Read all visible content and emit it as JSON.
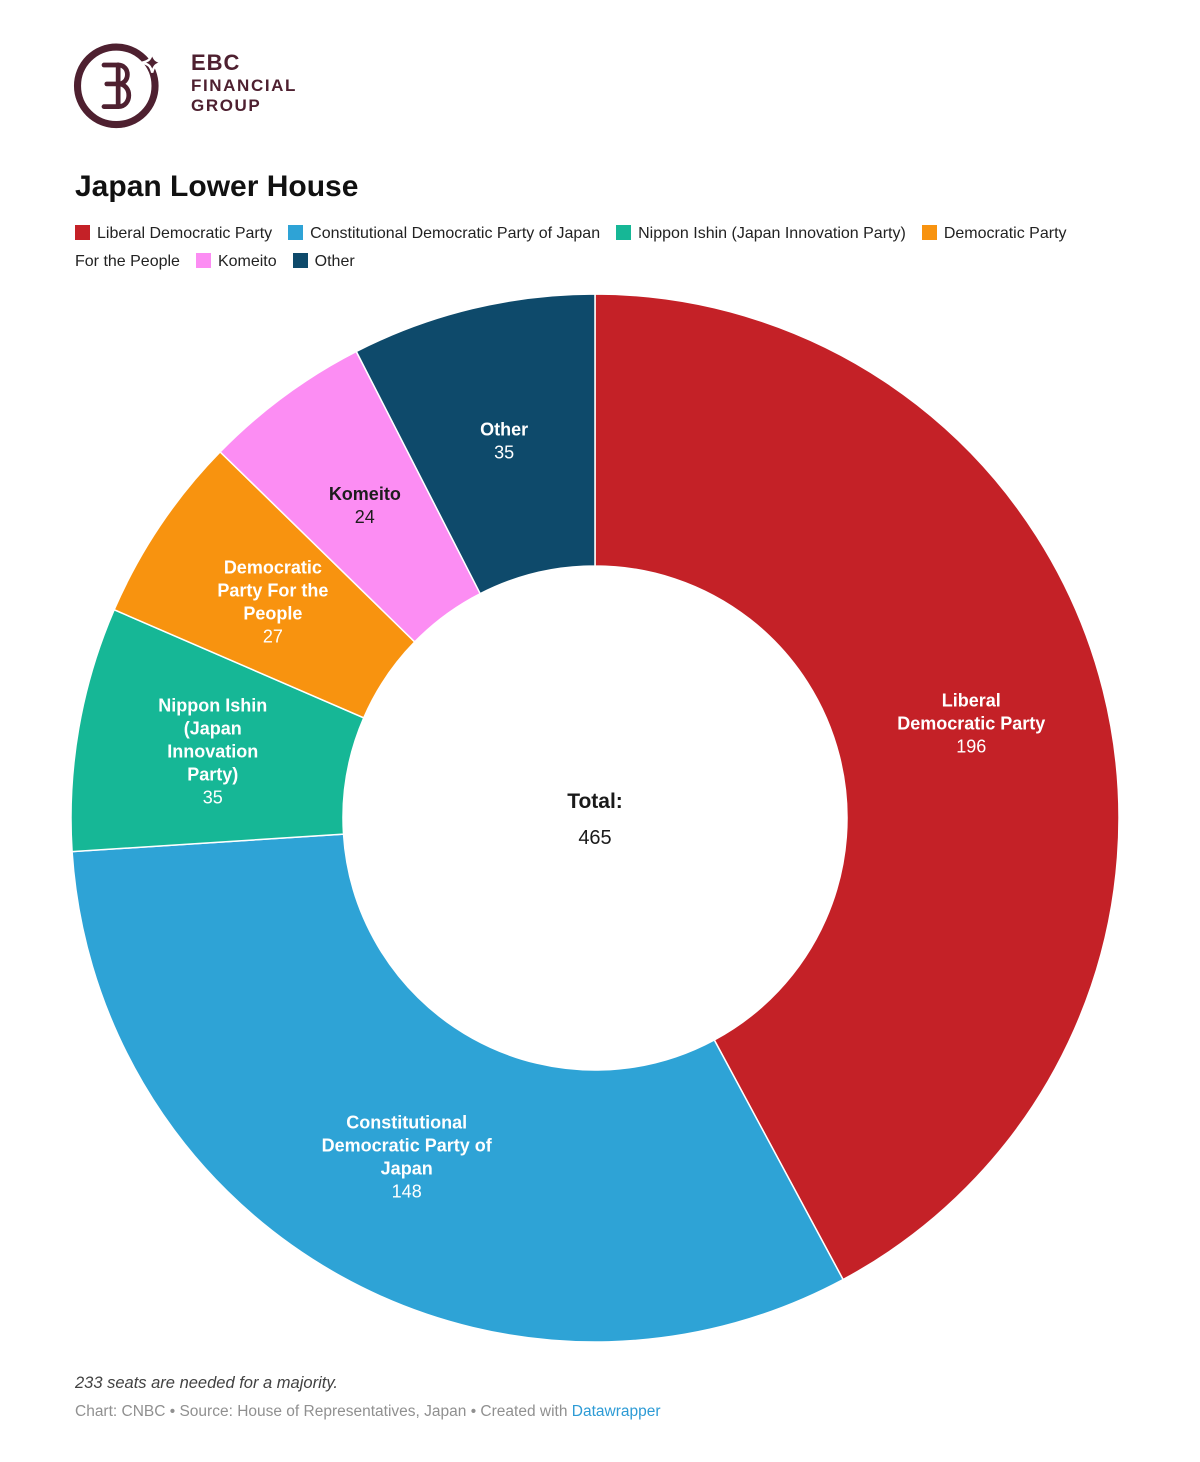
{
  "header": {
    "logo_line1": "EBC",
    "logo_line2": "FINANCIAL",
    "logo_line3": "GROUP",
    "logo_color": "#4e2030"
  },
  "chart_data": {
    "type": "pie",
    "subtype": "donut",
    "title": "Japan Lower House",
    "center_label": "Total:",
    "center_value": "465",
    "total": 465,
    "start_angle_deg": 0,
    "direction": "clockwise",
    "legend_position": "top",
    "slices": [
      {
        "label": "Liberal Democratic Party",
        "value": 196,
        "color": "#c42127",
        "text_color": "#ffffff",
        "label_lines": [
          "Liberal",
          "Democratic Party"
        ]
      },
      {
        "label": "Constitutional Democratic Party of Japan",
        "value": 148,
        "color": "#2ea3d6",
        "text_color": "#ffffff",
        "label_lines": [
          "Constitutional",
          "Democratic Party of",
          "Japan"
        ]
      },
      {
        "label": "Nippon Ishin (Japan Innovation Party)",
        "value": 35,
        "color": "#16b796",
        "text_color": "#ffffff",
        "label_lines": [
          "Nippon Ishin",
          "(Japan",
          "Innovation",
          "Party)"
        ]
      },
      {
        "label": "Democratic Party For the People",
        "value": 27,
        "color": "#f8930f",
        "text_color": "#ffffff",
        "label_lines": [
          "Democratic",
          "Party For the",
          "People"
        ]
      },
      {
        "label": "Komeito",
        "value": 24,
        "color": "#fc8df3",
        "text_color": "#1d1d1d",
        "label_lines": [
          "Komeito"
        ]
      },
      {
        "label": "Other",
        "value": 35,
        "color": "#0e4a6b",
        "text_color": "#ffffff",
        "label_lines": [
          "Other"
        ]
      }
    ]
  },
  "footer": {
    "note": "233 seats are needed for a majority.",
    "credit": "Chart: CNBC • Source: House of Representatives, Japan • Created with",
    "credit_link": "Datawrapper"
  }
}
